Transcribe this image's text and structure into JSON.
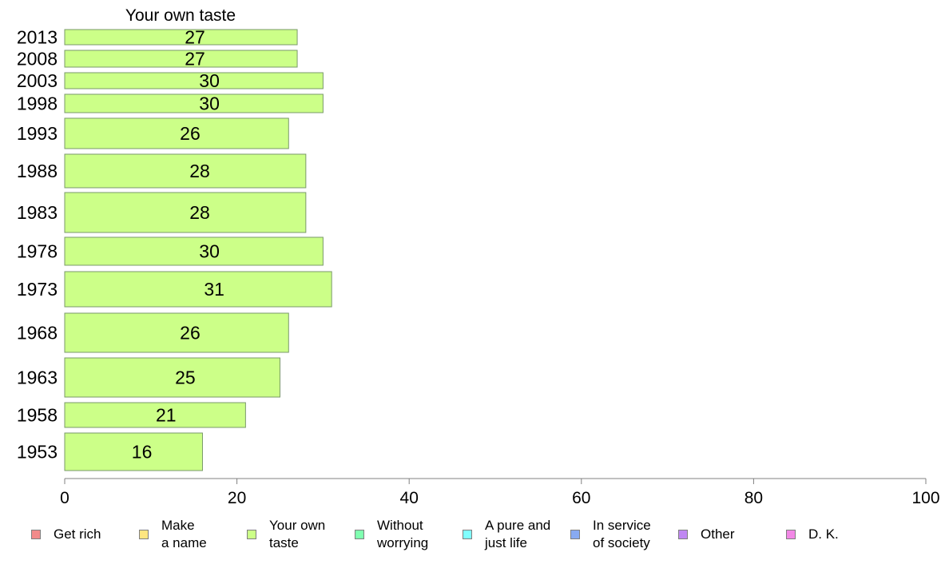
{
  "chart_data": {
    "type": "bar",
    "orientation": "horizontal",
    "title": "Your own taste",
    "categories": [
      "2013",
      "2008",
      "2003",
      "1998",
      "1993",
      "1988",
      "1983",
      "1978",
      "1973",
      "1968",
      "1963",
      "1958",
      "1953"
    ],
    "values": [
      27,
      27,
      30,
      30,
      26,
      28,
      28,
      30,
      31,
      26,
      25,
      21,
      16
    ],
    "xlim": [
      0,
      100
    ],
    "xticks": [
      "0",
      "20",
      "40",
      "60",
      "80",
      "100"
    ],
    "bar_color": "#ccff88",
    "grid": false,
    "legend_position": "bottom",
    "legend": [
      {
        "label": "Get rich",
        "color": "#f28b8b"
      },
      {
        "label": "Make\na name",
        "color": "#ffe680"
      },
      {
        "label": "Your own\ntaste",
        "color": "#ccff88"
      },
      {
        "label": "Without\nworrying",
        "color": "#80ffb0"
      },
      {
        "label": "A pure and\njust life",
        "color": "#80ffff"
      },
      {
        "label": "In service\nof society",
        "color": "#88aaf2"
      },
      {
        "label": "Other",
        "color": "#c088f2"
      },
      {
        "label": "D. K.",
        "color": "#f288e6"
      }
    ]
  }
}
